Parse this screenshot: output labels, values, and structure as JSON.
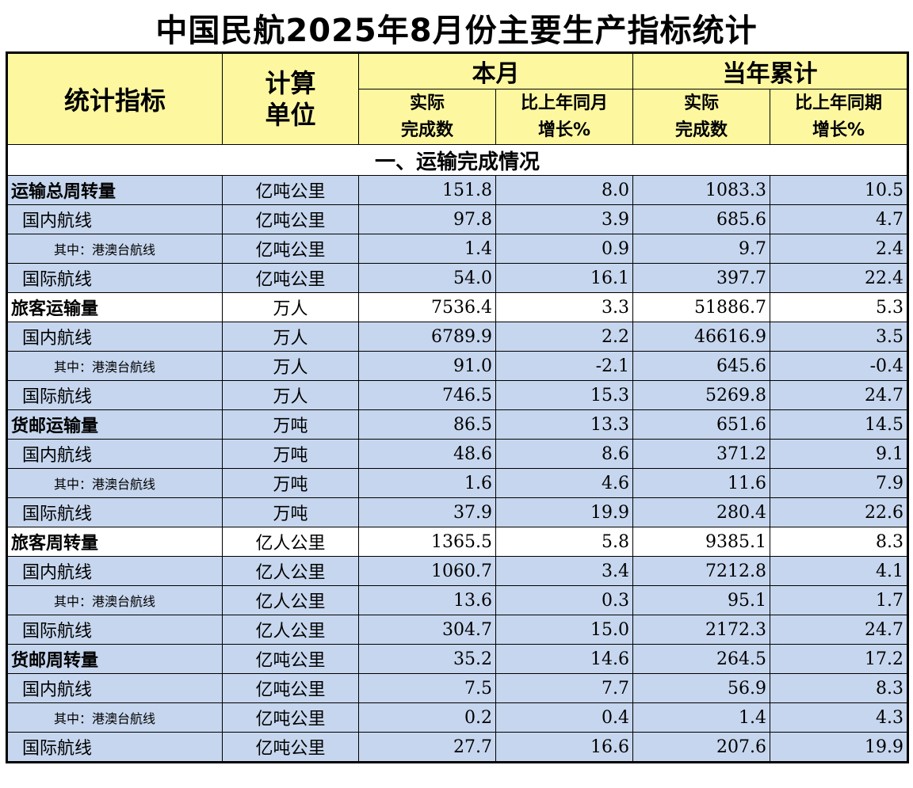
{
  "title": "中国民航2025年8月份主要生产指标统计",
  "header": {
    "indicator": "统计指标",
    "unit_line1": "计算",
    "unit_line2": "单位",
    "month_group": "本月",
    "ytd_group": "当年累计",
    "actual_line1": "实际",
    "actual_line2": "完成数",
    "yoy_month_line1": "比上年同月",
    "yoy_month_line2": "增长%",
    "yoy_period_line1": "比上年同期",
    "yoy_period_line2": "增长%"
  },
  "section_title": "一、运输完成情况",
  "rows": [
    {
      "name": "运输总周转量",
      "unit": "亿吨公里",
      "m_actual": "151.8",
      "m_growth": "8.0",
      "y_actual": "1083.3",
      "y_growth": "10.5"
    },
    {
      "name": "国内航线",
      "unit": "亿吨公里",
      "m_actual": "97.8",
      "m_growth": "3.9",
      "y_actual": "685.6",
      "y_growth": "4.7"
    },
    {
      "name": "其中：港澳台航线",
      "unit": "亿吨公里",
      "m_actual": "1.4",
      "m_growth": "0.9",
      "y_actual": "9.7",
      "y_growth": "2.4"
    },
    {
      "name": "国际航线",
      "unit": "亿吨公里",
      "m_actual": "54.0",
      "m_growth": "16.1",
      "y_actual": "397.7",
      "y_growth": "22.4"
    },
    {
      "name": "旅客运输量",
      "unit": "万人",
      "m_actual": "7536.4",
      "m_growth": "3.3",
      "y_actual": "51886.7",
      "y_growth": "5.3"
    },
    {
      "name": "国内航线",
      "unit": "万人",
      "m_actual": "6789.9",
      "m_growth": "2.2",
      "y_actual": "46616.9",
      "y_growth": "3.5"
    },
    {
      "name": "其中：港澳台航线",
      "unit": "万人",
      "m_actual": "91.0",
      "m_growth": "-2.1",
      "y_actual": "645.6",
      "y_growth": "-0.4"
    },
    {
      "name": "国际航线",
      "unit": "万人",
      "m_actual": "746.5",
      "m_growth": "15.3",
      "y_actual": "5269.8",
      "y_growth": "24.7"
    },
    {
      "name": "货邮运输量",
      "unit": "万吨",
      "m_actual": "86.5",
      "m_growth": "13.3",
      "y_actual": "651.6",
      "y_growth": "14.5"
    },
    {
      "name": "国内航线",
      "unit": "万吨",
      "m_actual": "48.6",
      "m_growth": "8.6",
      "y_actual": "371.2",
      "y_growth": "9.1"
    },
    {
      "name": "其中：港澳台航线",
      "unit": "万吨",
      "m_actual": "1.6",
      "m_growth": "4.6",
      "y_actual": "11.6",
      "y_growth": "7.9"
    },
    {
      "name": "国际航线",
      "unit": "万吨",
      "m_actual": "37.9",
      "m_growth": "19.9",
      "y_actual": "280.4",
      "y_growth": "22.6"
    },
    {
      "name": "旅客周转量",
      "unit": "亿人公里",
      "m_actual": "1365.5",
      "m_growth": "5.8",
      "y_actual": "9385.1",
      "y_growth": "8.3"
    },
    {
      "name": "国内航线",
      "unit": "亿人公里",
      "m_actual": "1060.7",
      "m_growth": "3.4",
      "y_actual": "7212.8",
      "y_growth": "4.1"
    },
    {
      "name": "其中：港澳台航线",
      "unit": "亿人公里",
      "m_actual": "13.6",
      "m_growth": "0.3",
      "y_actual": "95.1",
      "y_growth": "1.7"
    },
    {
      "name": "国际航线",
      "unit": "亿人公里",
      "m_actual": "304.7",
      "m_growth": "15.0",
      "y_actual": "2172.3",
      "y_growth": "24.7"
    },
    {
      "name": "货邮周转量",
      "unit": "亿吨公里",
      "m_actual": "35.2",
      "m_growth": "14.6",
      "y_actual": "264.5",
      "y_growth": "17.2"
    },
    {
      "name": "国内航线",
      "unit": "亿吨公里",
      "m_actual": "7.5",
      "m_growth": "7.7",
      "y_actual": "56.9",
      "y_growth": "8.3"
    },
    {
      "name": "其中：港澳台航线",
      "unit": "亿吨公里",
      "m_actual": "0.2",
      "m_growth": "0.4",
      "y_actual": "1.4",
      "y_growth": "4.3"
    },
    {
      "name": "国际航线",
      "unit": "亿吨公里",
      "m_actual": "27.7",
      "m_growth": "16.6",
      "y_actual": "207.6",
      "y_growth": "19.9"
    }
  ],
  "colors": {
    "header_bg": "#fdf8a0",
    "row_blue": "#c6d6ee",
    "row_white": "#ffffff"
  }
}
